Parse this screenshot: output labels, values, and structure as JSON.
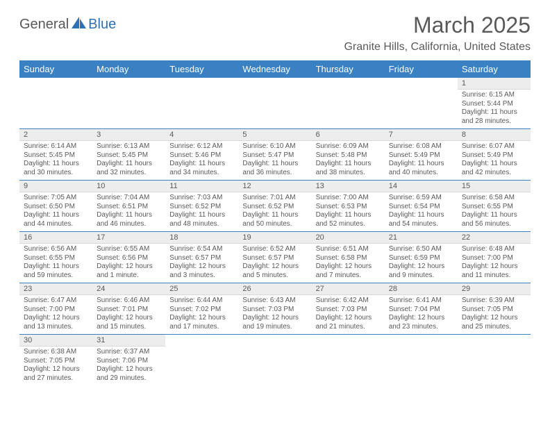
{
  "brand": {
    "part1": "General",
    "part2": "Blue"
  },
  "title": "March 2025",
  "location": "Granite Hills, California, United States",
  "colors": {
    "header_bg": "#3a81c4",
    "header_text": "#ffffff",
    "daynum_bg": "#ededed",
    "text": "#595959",
    "rule": "#3a81c4",
    "brand_gray": "#585858",
    "brand_blue": "#2e6fb5"
  },
  "typography": {
    "title_fontsize": 32,
    "location_fontsize": 16,
    "dayheader_fontsize": 13,
    "daynum_fontsize": 11,
    "body_fontsize": 10
  },
  "day_headers": [
    "Sunday",
    "Monday",
    "Tuesday",
    "Wednesday",
    "Thursday",
    "Friday",
    "Saturday"
  ],
  "weeks": [
    [
      null,
      null,
      null,
      null,
      null,
      null,
      {
        "n": "1",
        "sunrise": "Sunrise: 6:15 AM",
        "sunset": "Sunset: 5:44 PM",
        "daylight": "Daylight: 11 hours and 28 minutes."
      }
    ],
    [
      {
        "n": "2",
        "sunrise": "Sunrise: 6:14 AM",
        "sunset": "Sunset: 5:45 PM",
        "daylight": "Daylight: 11 hours and 30 minutes."
      },
      {
        "n": "3",
        "sunrise": "Sunrise: 6:13 AM",
        "sunset": "Sunset: 5:45 PM",
        "daylight": "Daylight: 11 hours and 32 minutes."
      },
      {
        "n": "4",
        "sunrise": "Sunrise: 6:12 AM",
        "sunset": "Sunset: 5:46 PM",
        "daylight": "Daylight: 11 hours and 34 minutes."
      },
      {
        "n": "5",
        "sunrise": "Sunrise: 6:10 AM",
        "sunset": "Sunset: 5:47 PM",
        "daylight": "Daylight: 11 hours and 36 minutes."
      },
      {
        "n": "6",
        "sunrise": "Sunrise: 6:09 AM",
        "sunset": "Sunset: 5:48 PM",
        "daylight": "Daylight: 11 hours and 38 minutes."
      },
      {
        "n": "7",
        "sunrise": "Sunrise: 6:08 AM",
        "sunset": "Sunset: 5:49 PM",
        "daylight": "Daylight: 11 hours and 40 minutes."
      },
      {
        "n": "8",
        "sunrise": "Sunrise: 6:07 AM",
        "sunset": "Sunset: 5:49 PM",
        "daylight": "Daylight: 11 hours and 42 minutes."
      }
    ],
    [
      {
        "n": "9",
        "sunrise": "Sunrise: 7:05 AM",
        "sunset": "Sunset: 6:50 PM",
        "daylight": "Daylight: 11 hours and 44 minutes."
      },
      {
        "n": "10",
        "sunrise": "Sunrise: 7:04 AM",
        "sunset": "Sunset: 6:51 PM",
        "daylight": "Daylight: 11 hours and 46 minutes."
      },
      {
        "n": "11",
        "sunrise": "Sunrise: 7:03 AM",
        "sunset": "Sunset: 6:52 PM",
        "daylight": "Daylight: 11 hours and 48 minutes."
      },
      {
        "n": "12",
        "sunrise": "Sunrise: 7:01 AM",
        "sunset": "Sunset: 6:52 PM",
        "daylight": "Daylight: 11 hours and 50 minutes."
      },
      {
        "n": "13",
        "sunrise": "Sunrise: 7:00 AM",
        "sunset": "Sunset: 6:53 PM",
        "daylight": "Daylight: 11 hours and 52 minutes."
      },
      {
        "n": "14",
        "sunrise": "Sunrise: 6:59 AM",
        "sunset": "Sunset: 6:54 PM",
        "daylight": "Daylight: 11 hours and 54 minutes."
      },
      {
        "n": "15",
        "sunrise": "Sunrise: 6:58 AM",
        "sunset": "Sunset: 6:55 PM",
        "daylight": "Daylight: 11 hours and 56 minutes."
      }
    ],
    [
      {
        "n": "16",
        "sunrise": "Sunrise: 6:56 AM",
        "sunset": "Sunset: 6:55 PM",
        "daylight": "Daylight: 11 hours and 59 minutes."
      },
      {
        "n": "17",
        "sunrise": "Sunrise: 6:55 AM",
        "sunset": "Sunset: 6:56 PM",
        "daylight": "Daylight: 12 hours and 1 minute."
      },
      {
        "n": "18",
        "sunrise": "Sunrise: 6:54 AM",
        "sunset": "Sunset: 6:57 PM",
        "daylight": "Daylight: 12 hours and 3 minutes."
      },
      {
        "n": "19",
        "sunrise": "Sunrise: 6:52 AM",
        "sunset": "Sunset: 6:57 PM",
        "daylight": "Daylight: 12 hours and 5 minutes."
      },
      {
        "n": "20",
        "sunrise": "Sunrise: 6:51 AM",
        "sunset": "Sunset: 6:58 PM",
        "daylight": "Daylight: 12 hours and 7 minutes."
      },
      {
        "n": "21",
        "sunrise": "Sunrise: 6:50 AM",
        "sunset": "Sunset: 6:59 PM",
        "daylight": "Daylight: 12 hours and 9 minutes."
      },
      {
        "n": "22",
        "sunrise": "Sunrise: 6:48 AM",
        "sunset": "Sunset: 7:00 PM",
        "daylight": "Daylight: 12 hours and 11 minutes."
      }
    ],
    [
      {
        "n": "23",
        "sunrise": "Sunrise: 6:47 AM",
        "sunset": "Sunset: 7:00 PM",
        "daylight": "Daylight: 12 hours and 13 minutes."
      },
      {
        "n": "24",
        "sunrise": "Sunrise: 6:46 AM",
        "sunset": "Sunset: 7:01 PM",
        "daylight": "Daylight: 12 hours and 15 minutes."
      },
      {
        "n": "25",
        "sunrise": "Sunrise: 6:44 AM",
        "sunset": "Sunset: 7:02 PM",
        "daylight": "Daylight: 12 hours and 17 minutes."
      },
      {
        "n": "26",
        "sunrise": "Sunrise: 6:43 AM",
        "sunset": "Sunset: 7:03 PM",
        "daylight": "Daylight: 12 hours and 19 minutes."
      },
      {
        "n": "27",
        "sunrise": "Sunrise: 6:42 AM",
        "sunset": "Sunset: 7:03 PM",
        "daylight": "Daylight: 12 hours and 21 minutes."
      },
      {
        "n": "28",
        "sunrise": "Sunrise: 6:41 AM",
        "sunset": "Sunset: 7:04 PM",
        "daylight": "Daylight: 12 hours and 23 minutes."
      },
      {
        "n": "29",
        "sunrise": "Sunrise: 6:39 AM",
        "sunset": "Sunset: 7:05 PM",
        "daylight": "Daylight: 12 hours and 25 minutes."
      }
    ],
    [
      {
        "n": "30",
        "sunrise": "Sunrise: 6:38 AM",
        "sunset": "Sunset: 7:05 PM",
        "daylight": "Daylight: 12 hours and 27 minutes."
      },
      {
        "n": "31",
        "sunrise": "Sunrise: 6:37 AM",
        "sunset": "Sunset: 7:06 PM",
        "daylight": "Daylight: 12 hours and 29 minutes."
      },
      null,
      null,
      null,
      null,
      null
    ]
  ]
}
